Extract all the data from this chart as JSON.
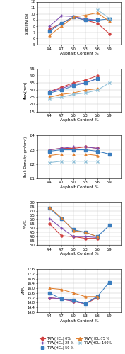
{
  "x": [
    4.4,
    4.7,
    5.0,
    5.3,
    5.6,
    5.9
  ],
  "stability": {
    "0%": [
      7.5,
      8.5,
      9.5,
      9.0,
      8.5,
      6.8
    ],
    "25%": [
      8.0,
      9.7,
      9.6,
      9.2,
      9.0,
      null
    ],
    "50%": [
      7.2,
      8.5,
      9.5,
      9.0,
      9.0,
      9.2
    ],
    "75%": [
      6.5,
      8.0,
      9.5,
      9.8,
      10.2,
      8.8
    ],
    "100%": [
      null,
      null,
      null,
      null,
      10.7,
      9.3
    ]
  },
  "flow": {
    "0%": [
      2.9,
      3.2,
      3.5,
      3.7,
      4.0,
      null
    ],
    "25%": [
      2.9,
      3.1,
      3.4,
      3.5,
      3.8,
      null
    ],
    "50%": [
      2.8,
      3.0,
      3.3,
      3.5,
      3.8,
      null
    ],
    "75%": [
      2.5,
      2.7,
      2.8,
      3.0,
      3.1,
      null
    ],
    "100%": [
      2.4,
      2.5,
      2.7,
      2.8,
      3.0,
      3.5
    ]
  },
  "bulk_density": {
    "0%": [
      2.3,
      2.31,
      2.31,
      2.32,
      2.31,
      null
    ],
    "25%": [
      2.3,
      2.31,
      2.32,
      2.32,
      2.31,
      null
    ],
    "50%": [
      2.29,
      2.3,
      2.3,
      2.3,
      2.29,
      2.27
    ],
    "75%": [
      2.26,
      2.27,
      2.27,
      2.27,
      2.26,
      null
    ],
    "100%": [
      2.21,
      2.22,
      2.22,
      2.22,
      2.22,
      null
    ]
  },
  "av": {
    "0%": [
      5.5,
      4.1,
      4.0,
      3.8,
      3.8,
      null
    ],
    "25%": [
      6.1,
      5.0,
      4.0,
      4.0,
      3.9,
      null
    ],
    "50%": [
      7.3,
      6.1,
      4.8,
      4.5,
      4.0,
      5.3
    ],
    "75%": [
      7.4,
      6.2,
      4.7,
      4.5,
      4.0,
      null
    ],
    "100%": [
      null,
      null,
      null,
      null,
      null,
      null
    ]
  },
  "vma": {
    "0%": [
      15.2,
      15.1,
      14.9,
      14.7,
      15.2,
      null
    ],
    "25%": [
      15.2,
      15.1,
      14.9,
      14.7,
      15.3,
      null
    ],
    "50%": [
      15.6,
      15.1,
      15.0,
      14.7,
      15.3,
      16.5
    ],
    "75%": [
      16.0,
      15.9,
      15.6,
      15.3,
      15.3,
      null
    ],
    "100%": [
      null,
      null,
      null,
      null,
      null,
      null
    ]
  },
  "colors": {
    "0%": "#d04040",
    "25%": "#8050b0",
    "50%": "#3a7dbf",
    "75%": "#e08030",
    "100%": "#90c0d8"
  },
  "markers": {
    "0%": "o",
    "25%": "+",
    "50%": "s",
    "75%": "^",
    "100%": "x"
  },
  "legend_labels": {
    "0%": "TRW(HCL) 0%",
    "25%": "TRW(HCL) 25 %",
    "50%": "TRW(HCL) 50 %",
    "75%": "TRW(HCL)75 %",
    "100%": "TRW(HCL) 100%"
  },
  "xlim": [
    4.1,
    6.2
  ],
  "xticks": [
    4.4,
    4.7,
    5.0,
    5.3,
    5.6,
    5.9
  ],
  "xlabel": "Asphalt Content %",
  "stability_ylim": [
    5.0,
    12.0
  ],
  "stability_yticks": [
    5.0,
    6.0,
    7.0,
    8.0,
    9.0,
    10.0,
    11.0,
    12.0
  ],
  "stability_ylabel": "Stability(kN)",
  "flow_ylim": [
    1.5,
    4.5
  ],
  "flow_yticks": [
    1.5,
    2.0,
    2.5,
    3.0,
    3.5,
    4.0,
    4.5
  ],
  "flow_ylabel": "flow(mm)",
  "bd_ylim": [
    2.1,
    2.4
  ],
  "bd_yticks": [
    2.1,
    2.2,
    2.3,
    2.4
  ],
  "bd_ylabel": "Bulk Density(gm/cm³)",
  "av_ylim": [
    3.0,
    8.0
  ],
  "av_yticks": [
    3.0,
    3.5,
    4.0,
    4.5,
    5.0,
    5.5,
    6.0,
    6.5,
    7.0,
    7.5,
    8.0
  ],
  "av_ylabel": "A.V%",
  "vma_ylim": [
    14.0,
    17.6
  ],
  "vma_yticks": [
    14.0,
    14.4,
    14.8,
    15.2,
    15.6,
    16.0,
    16.4,
    16.8,
    17.2,
    17.6
  ],
  "vma_ylabel": "VMA"
}
